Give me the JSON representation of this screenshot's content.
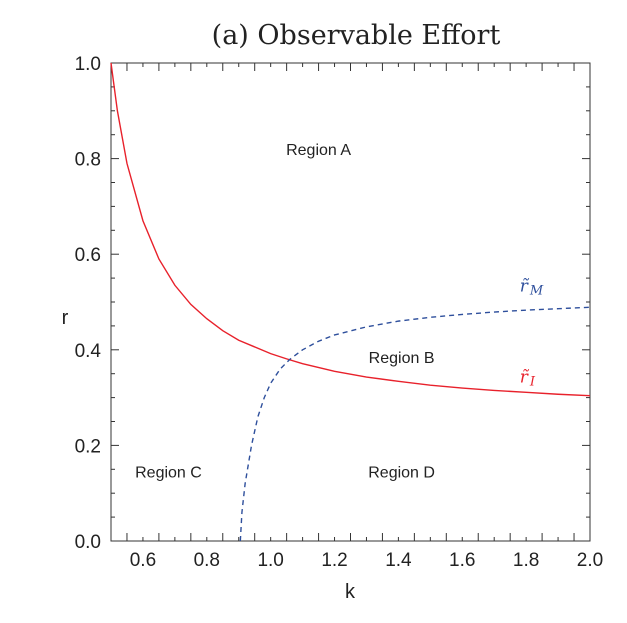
{
  "chart_data": {
    "type": "line",
    "title": "(a) Observable Effort",
    "xlabel": "k",
    "ylabel": "r",
    "xlim": [
      0.5,
      2.0
    ],
    "ylim": [
      0.0,
      1.0
    ],
    "x_ticks": [
      "0.6",
      "0.8",
      "1.0",
      "1.2",
      "1.4",
      "1.6",
      "1.8",
      "2.0"
    ],
    "y_ticks": [
      "0.0",
      "0.2",
      "0.4",
      "0.6",
      "0.8",
      "1.0"
    ],
    "grid": false,
    "colors": {
      "r_I": "#e8212b",
      "r_M": "#2e4f9c"
    },
    "series": [
      {
        "label": "r̃ I",
        "label_base": "r̃",
        "label_sub": "I",
        "style": "solid",
        "color": "#e8212b",
        "x": [
          0.5,
          0.52,
          0.55,
          0.6,
          0.65,
          0.7,
          0.75,
          0.8,
          0.85,
          0.9,
          1.0,
          1.05,
          1.1,
          1.2,
          1.3,
          1.4,
          1.5,
          1.6,
          1.7,
          1.8,
          1.9,
          2.0
        ],
        "y": [
          1.0,
          0.9,
          0.79,
          0.67,
          0.59,
          0.535,
          0.495,
          0.465,
          0.44,
          0.42,
          0.392,
          0.381,
          0.371,
          0.355,
          0.343,
          0.334,
          0.326,
          0.32,
          0.315,
          0.311,
          0.307,
          0.304
        ]
      },
      {
        "label": "r̃ M",
        "label_base": "r̃",
        "label_sub": "M",
        "style": "dashed",
        "color": "#2e4f9c",
        "x": [
          0.905,
          0.91,
          0.92,
          0.94,
          0.96,
          0.98,
          1.0,
          1.03,
          1.06,
          1.1,
          1.15,
          1.2,
          1.3,
          1.4,
          1.5,
          1.6,
          1.7,
          1.8,
          1.9,
          2.0
        ],
        "y": [
          0.0,
          0.06,
          0.12,
          0.2,
          0.26,
          0.3,
          0.33,
          0.36,
          0.38,
          0.4,
          0.418,
          0.431,
          0.448,
          0.46,
          0.468,
          0.474,
          0.479,
          0.483,
          0.486,
          0.489
        ]
      }
    ],
    "annotations": [
      {
        "text": "Region A",
        "x": 1.15,
        "y": 0.82
      },
      {
        "text": "Region B",
        "x": 1.41,
        "y": 0.385
      },
      {
        "text": "Region C",
        "x": 0.68,
        "y": 0.145
      },
      {
        "text": "Region D",
        "x": 1.41,
        "y": 0.145
      }
    ]
  }
}
